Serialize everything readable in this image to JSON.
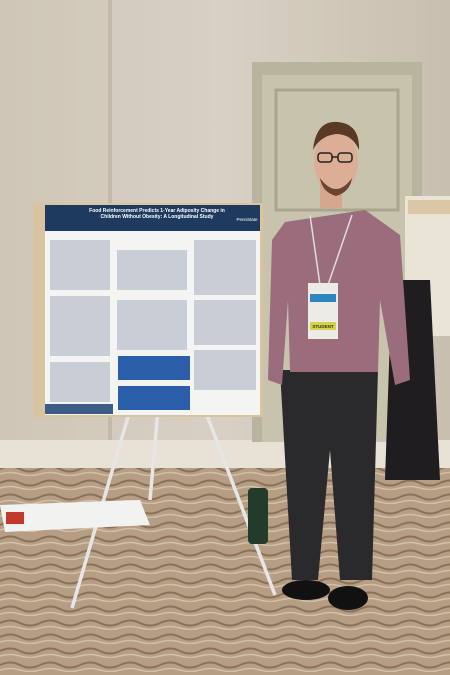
{
  "poster": {
    "title": "Food Reinforcement Predicts 1-Year Adiposity Change in Children Without Obesity: A Longitudinal Study",
    "logo": "PennState"
  },
  "badge": {
    "ribbon": "STUDENT"
  }
}
